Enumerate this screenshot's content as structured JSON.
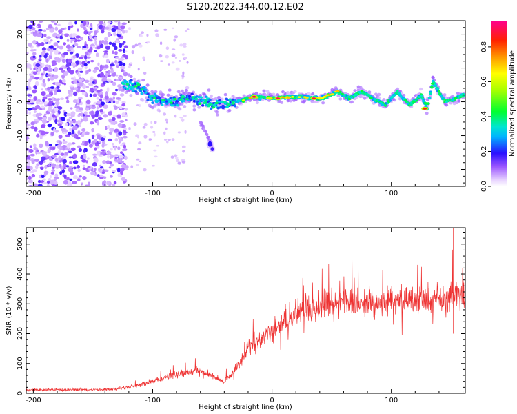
{
  "title": "S120.2022.344.00.12.E02",
  "chart_data": [
    {
      "type": "heatmap",
      "xlabel": "Height of straight line (km)",
      "ylabel": "Frequency (Hz)",
      "xlim": [
        -206,
        162
      ],
      "ylim": [
        -25,
        24
      ],
      "xticks": [
        -200,
        -100,
        0,
        100
      ],
      "yticks": [
        -20,
        -10,
        0,
        10,
        20
      ],
      "colorbar": {
        "label": "Normalized spectral amplitude",
        "range": [
          0.0,
          0.95
        ],
        "ticks": [
          0.0,
          0.2,
          0.4,
          0.6,
          0.8
        ]
      },
      "noise_region": {
        "x_range": [
          -206,
          -122
        ],
        "freq_range": [
          -25,
          24
        ]
      },
      "ridge": [
        {
          "x": -125,
          "freq": 5
        },
        {
          "x": -110,
          "freq": 4
        },
        {
          "x": -100,
          "freq": 1
        },
        {
          "x": -85,
          "freq": 0
        },
        {
          "x": -70,
          "freq": 1.5
        },
        {
          "x": -55,
          "freq": 0
        },
        {
          "x": -45,
          "freq": -1
        },
        {
          "x": -30,
          "freq": 0
        },
        {
          "x": -15,
          "freq": 1.5
        },
        {
          "x": 0,
          "freq": 1
        },
        {
          "x": 20,
          "freq": 1.5
        },
        {
          "x": 40,
          "freq": 1
        },
        {
          "x": 55,
          "freq": 3
        },
        {
          "x": 65,
          "freq": 1
        },
        {
          "x": 75,
          "freq": 3
        },
        {
          "x": 85,
          "freq": 1
        },
        {
          "x": 95,
          "freq": -1
        },
        {
          "x": 105,
          "freq": 3
        },
        {
          "x": 115,
          "freq": -1
        },
        {
          "x": 125,
          "freq": 2
        },
        {
          "x": 130,
          "freq": -2
        },
        {
          "x": 135,
          "freq": 6
        },
        {
          "x": 145,
          "freq": 0
        },
        {
          "x": 162,
          "freq": 2
        }
      ],
      "branch": [
        {
          "x": -60,
          "freq": -6
        },
        {
          "x": -50,
          "freq": -13
        }
      ],
      "peaks": [
        {
          "x": -15,
          "freq": 1.5,
          "amp": 0.95
        },
        {
          "x": 5,
          "freq": 1,
          "amp": 0.95
        },
        {
          "x": 35,
          "freq": 1,
          "amp": 0.95
        },
        {
          "x": 128,
          "freq": -2,
          "amp": 0.9
        }
      ]
    },
    {
      "type": "line",
      "xlabel": "Height of straight line (km)",
      "ylabel": "SNR (10 * v/v)",
      "xlim": [
        -206,
        162
      ],
      "ylim": [
        0,
        555
      ],
      "xticks": [
        -200,
        -100,
        0,
        100
      ],
      "yticks": [
        0,
        100,
        200,
        300,
        400,
        500
      ],
      "color": "#ee3333",
      "envelope": [
        {
          "x": -206,
          "y": 12
        },
        {
          "x": -140,
          "y": 12
        },
        {
          "x": -120,
          "y": 20
        },
        {
          "x": -100,
          "y": 40
        },
        {
          "x": -80,
          "y": 65
        },
        {
          "x": -60,
          "y": 75
        },
        {
          "x": -40,
          "y": 40
        },
        {
          "x": -30,
          "y": 80
        },
        {
          "x": -20,
          "y": 150
        },
        {
          "x": 0,
          "y": 210
        },
        {
          "x": 20,
          "y": 265
        },
        {
          "x": 40,
          "y": 295
        },
        {
          "x": 60,
          "y": 305
        },
        {
          "x": 80,
          "y": 305
        },
        {
          "x": 100,
          "y": 310
        },
        {
          "x": 120,
          "y": 315
        },
        {
          "x": 140,
          "y": 320
        },
        {
          "x": 162,
          "y": 330
        }
      ],
      "max_y": 555
    }
  ]
}
